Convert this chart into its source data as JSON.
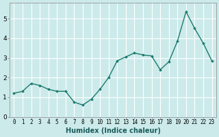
{
  "x": [
    0,
    1,
    2,
    3,
    4,
    5,
    6,
    7,
    8,
    9,
    10,
    11,
    12,
    13,
    14,
    15,
    16,
    17,
    18,
    19,
    20,
    21,
    22,
    23
  ],
  "y": [
    1.2,
    1.3,
    1.7,
    1.6,
    1.4,
    1.3,
    1.3,
    0.75,
    0.6,
    0.9,
    1.4,
    2.0,
    2.85,
    3.05,
    3.25,
    3.15,
    3.1,
    2.4,
    2.8,
    3.85,
    5.35,
    4.5,
    3.75,
    2.85
  ],
  "xlabel": "Humidex (Indice chaleur)",
  "ylim": [
    0,
    5.8
  ],
  "xlim": [
    -0.5,
    23.5
  ],
  "yticks": [
    0,
    1,
    2,
    3,
    4,
    5
  ],
  "xtick_labels": [
    "0",
    "1",
    "2",
    "3",
    "4",
    "5",
    "6",
    "7",
    "8",
    "9",
    "10",
    "11",
    "12",
    "13",
    "14",
    "15",
    "16",
    "17",
    "18",
    "19",
    "20",
    "21",
    "22",
    "23"
  ],
  "line_color": "#1a7a6e",
  "marker_color": "#1a7a6e",
  "bg_color": "#cceaea",
  "grid_color": "#ffffff",
  "xlabel_fontsize": 7,
  "tick_fontsize": 5.5,
  "ytick_fontsize": 6.5
}
